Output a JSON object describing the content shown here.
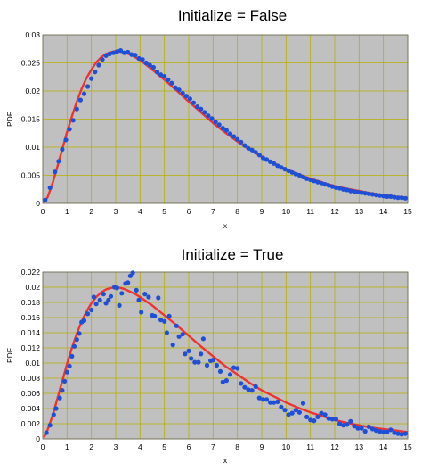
{
  "chart_data": [
    {
      "type": "scatter",
      "title": "Initialize = False",
      "xlabel": "x",
      "ylabel": "PDF",
      "xlim": [
        0,
        15
      ],
      "ylim": [
        0,
        0.03
      ],
      "xticks": [
        0,
        1,
        2,
        3,
        4,
        5,
        6,
        7,
        8,
        9,
        10,
        11,
        12,
        13,
        14,
        15
      ],
      "yticks": [
        0,
        0.005,
        0.01,
        0.015,
        0.02,
        0.025,
        0.03
      ],
      "ytick_labels": [
        "0",
        "0.005",
        "0.01",
        "0.015",
        "0.02",
        "0.025",
        "0.03"
      ],
      "grid": true,
      "background": "#c0c0c0",
      "grid_color": "#b8b000",
      "series": [
        {
          "kind": "line",
          "color": "#ee3333",
          "x": [
            0.05,
            0.2,
            0.4,
            0.6,
            0.8,
            1.0,
            1.2,
            1.4,
            1.6,
            1.8,
            2.0,
            2.2,
            2.4,
            2.6,
            2.8,
            3.0,
            3.2,
            3.4,
            3.6,
            3.8,
            4.0,
            4.5,
            5.0,
            5.5,
            6.0,
            6.5,
            7.0,
            7.5,
            8.0,
            8.5,
            9.0,
            9.5,
            10.0,
            10.5,
            11.0,
            11.5,
            12.0,
            12.5,
            13.0,
            13.5,
            14.0,
            14.5,
            15.0
          ],
          "y": [
            0.0001,
            0.0011,
            0.0035,
            0.0065,
            0.0096,
            0.0127,
            0.0155,
            0.0181,
            0.0204,
            0.0223,
            0.0238,
            0.0251,
            0.026,
            0.0266,
            0.0269,
            0.0271,
            0.027,
            0.0268,
            0.0265,
            0.026,
            0.0255,
            0.0238,
            0.022,
            0.0201,
            0.0181,
            0.0162,
            0.0143,
            0.0126,
            0.011,
            0.0096,
            0.0083,
            0.0071,
            0.0061,
            0.0052,
            0.0044,
            0.0037,
            0.0031,
            0.0026,
            0.0022,
            0.0018,
            0.0015,
            0.0012,
            0.001
          ]
        },
        {
          "kind": "points",
          "color": "#1f4fd6",
          "x": [
            0.1,
            0.3,
            0.5,
            0.65,
            0.8,
            0.95,
            1.1,
            1.25,
            1.4,
            1.55,
            1.7,
            1.85,
            2.0,
            2.15,
            2.3,
            2.45,
            2.6,
            2.75,
            2.9,
            3.05,
            3.2,
            3.35,
            3.5,
            3.65,
            3.8,
            3.95,
            4.1,
            4.25,
            4.4,
            4.55,
            4.7,
            4.85,
            5.0,
            5.15,
            5.3,
            5.45,
            5.6,
            5.75,
            5.9,
            6.05,
            6.2,
            6.35,
            6.5,
            6.65,
            6.8,
            6.95,
            7.1,
            7.25,
            7.4,
            7.55,
            7.7,
            7.85,
            8.0,
            8.15,
            8.3,
            8.45,
            8.6,
            8.75,
            8.9,
            9.05,
            9.2,
            9.35,
            9.5,
            9.65,
            9.8,
            9.95,
            10.1,
            10.25,
            10.4,
            10.55,
            10.7,
            10.85,
            11.0,
            11.15,
            11.3,
            11.45,
            11.6,
            11.75,
            11.9,
            12.05,
            12.2,
            12.35,
            12.5,
            12.65,
            12.8,
            12.95,
            13.1,
            13.25,
            13.4,
            13.55,
            13.7,
            13.85,
            14.0,
            14.15,
            14.3,
            14.45,
            14.6,
            14.75,
            14.9
          ],
          "y": [
            0.0006,
            0.0028,
            0.0056,
            0.0075,
            0.0096,
            0.0113,
            0.0132,
            0.0148,
            0.0168,
            0.0184,
            0.0195,
            0.0208,
            0.0222,
            0.0234,
            0.0246,
            0.0256,
            0.0263,
            0.0266,
            0.0268,
            0.027,
            0.0272,
            0.0268,
            0.0269,
            0.0265,
            0.0264,
            0.0258,
            0.0256,
            0.025,
            0.0246,
            0.0242,
            0.0234,
            0.0229,
            0.0226,
            0.022,
            0.0214,
            0.0206,
            0.0202,
            0.0196,
            0.0191,
            0.0186,
            0.0179,
            0.0172,
            0.0168,
            0.0162,
            0.0156,
            0.0151,
            0.0145,
            0.014,
            0.0134,
            0.013,
            0.0124,
            0.0119,
            0.0114,
            0.0109,
            0.0103,
            0.0098,
            0.0095,
            0.0091,
            0.0086,
            0.0081,
            0.0078,
            0.0074,
            0.0071,
            0.0067,
            0.0064,
            0.0061,
            0.0058,
            0.0055,
            0.0052,
            0.005,
            0.0047,
            0.0044,
            0.0042,
            0.004,
            0.0038,
            0.0036,
            0.0034,
            0.0032,
            0.003,
            0.0028,
            0.0027,
            0.0025,
            0.0024,
            0.0022,
            0.0021,
            0.002,
            0.0019,
            0.0018,
            0.0017,
            0.0016,
            0.0015,
            0.0014,
            0.0013,
            0.0012,
            0.0012,
            0.0011,
            0.001,
            0.001,
            0.0009
          ]
        }
      ]
    },
    {
      "type": "scatter",
      "title": "Initialize = True",
      "xlabel": "x",
      "ylabel": "PDF",
      "xlim": [
        0,
        15
      ],
      "ylim": [
        0,
        0.022
      ],
      "xticks": [
        0,
        1,
        2,
        3,
        4,
        5,
        6,
        7,
        8,
        9,
        10,
        11,
        12,
        13,
        14,
        15
      ],
      "yticks": [
        0,
        0.002,
        0.004,
        0.006,
        0.008,
        0.01,
        0.012,
        0.014,
        0.016,
        0.018,
        0.02,
        0.022
      ],
      "ytick_labels": [
        "0",
        "0.002",
        "0.004",
        "0.006",
        "0.008",
        "0.01",
        "0.012",
        "0.014",
        "0.016",
        "0.018",
        "0.02",
        "0.022"
      ],
      "grid": true,
      "background": "#c0c0c0",
      "grid_color": "#b8b000",
      "series": [
        {
          "kind": "line",
          "color": "#ee3333",
          "x": [
            0.05,
            0.2,
            0.4,
            0.6,
            0.8,
            1.0,
            1.2,
            1.4,
            1.6,
            1.8,
            2.0,
            2.2,
            2.4,
            2.6,
            2.8,
            3.0,
            3.2,
            3.4,
            3.6,
            3.8,
            4.0,
            4.5,
            5.0,
            5.5,
            6.0,
            6.5,
            7.0,
            7.5,
            8.0,
            8.5,
            9.0,
            9.5,
            10.0,
            10.5,
            11.0,
            11.5,
            12.0,
            12.5,
            13.0,
            13.5,
            14.0,
            14.5,
            15.0
          ],
          "y": [
            0.0002,
            0.0012,
            0.003,
            0.0053,
            0.0076,
            0.0099,
            0.012,
            0.0139,
            0.0155,
            0.0168,
            0.0179,
            0.0187,
            0.0193,
            0.0197,
            0.0199,
            0.02,
            0.0199,
            0.0197,
            0.0194,
            0.0191,
            0.0187,
            0.0176,
            0.0163,
            0.015,
            0.0136,
            0.0122,
            0.0109,
            0.0096,
            0.0085,
            0.0074,
            0.0064,
            0.0056,
            0.0048,
            0.0041,
            0.0035,
            0.003,
            0.0025,
            0.0021,
            0.0018,
            0.0015,
            0.0013,
            0.0011,
            0.0009
          ]
        },
        {
          "kind": "points",
          "color": "#1f4fd6",
          "x": [
            0.15,
            0.3,
            0.45,
            0.55,
            0.7,
            0.8,
            0.9,
            1.0,
            1.1,
            1.2,
            1.3,
            1.4,
            1.5,
            1.6,
            1.7,
            1.85,
            2.0,
            2.1,
            2.2,
            2.35,
            2.5,
            2.6,
            2.7,
            2.8,
            2.95,
            3.05,
            3.15,
            3.25,
            3.4,
            3.5,
            3.6,
            3.7,
            3.85,
            3.95,
            4.05,
            4.2,
            4.35,
            4.5,
            4.6,
            4.75,
            4.85,
            5.0,
            5.1,
            5.2,
            5.35,
            5.5,
            5.6,
            5.75,
            5.85,
            6.0,
            6.1,
            6.25,
            6.4,
            6.5,
            6.6,
            6.75,
            6.9,
            7.0,
            7.15,
            7.3,
            7.4,
            7.55,
            7.7,
            7.85,
            8.0,
            8.15,
            8.3,
            8.45,
            8.6,
            8.75,
            8.9,
            9.05,
            9.2,
            9.35,
            9.5,
            9.65,
            9.8,
            9.95,
            10.1,
            10.25,
            10.4,
            10.55,
            10.7,
            10.85,
            11.0,
            11.15,
            11.3,
            11.45,
            11.6,
            11.75,
            11.9,
            12.05,
            12.2,
            12.35,
            12.5,
            12.65,
            12.8,
            12.95,
            13.1,
            13.25,
            13.4,
            13.55,
            13.7,
            13.85,
            14.0,
            14.15,
            14.3,
            14.45,
            14.6,
            14.75,
            14.9
          ],
          "y": [
            0.0008,
            0.0018,
            0.0032,
            0.004,
            0.0054,
            0.0064,
            0.0076,
            0.0088,
            0.0096,
            0.0109,
            0.0122,
            0.0131,
            0.0139,
            0.0154,
            0.0156,
            0.0165,
            0.017,
            0.0187,
            0.0178,
            0.0183,
            0.0191,
            0.0179,
            0.0183,
            0.0188,
            0.02,
            0.0199,
            0.0176,
            0.0192,
            0.0205,
            0.0206,
            0.0215,
            0.0219,
            0.0196,
            0.0183,
            0.0167,
            0.0191,
            0.0187,
            0.0163,
            0.0162,
            0.0186,
            0.0157,
            0.0155,
            0.014,
            0.0162,
            0.0124,
            0.0149,
            0.0135,
            0.0138,
            0.0112,
            0.0116,
            0.0106,
            0.0101,
            0.0101,
            0.0112,
            0.0132,
            0.0097,
            0.0103,
            0.0104,
            0.0097,
            0.0089,
            0.0075,
            0.0077,
            0.0085,
            0.0094,
            0.0093,
            0.0073,
            0.0068,
            0.0065,
            0.0064,
            0.0069,
            0.0054,
            0.0052,
            0.0052,
            0.0048,
            0.0048,
            0.0049,
            0.0042,
            0.0038,
            0.0032,
            0.0034,
            0.0038,
            0.0035,
            0.0047,
            0.0029,
            0.0025,
            0.0024,
            0.0029,
            0.0034,
            0.0032,
            0.0027,
            0.0026,
            0.0026,
            0.002,
            0.0018,
            0.0019,
            0.0023,
            0.0017,
            0.0014,
            0.0014,
            0.001,
            0.0016,
            0.0013,
            0.0011,
            0.001,
            0.0009,
            0.0009,
            0.0012,
            0.0008,
            0.0007,
            0.0006,
            0.0007
          ]
        }
      ]
    }
  ]
}
